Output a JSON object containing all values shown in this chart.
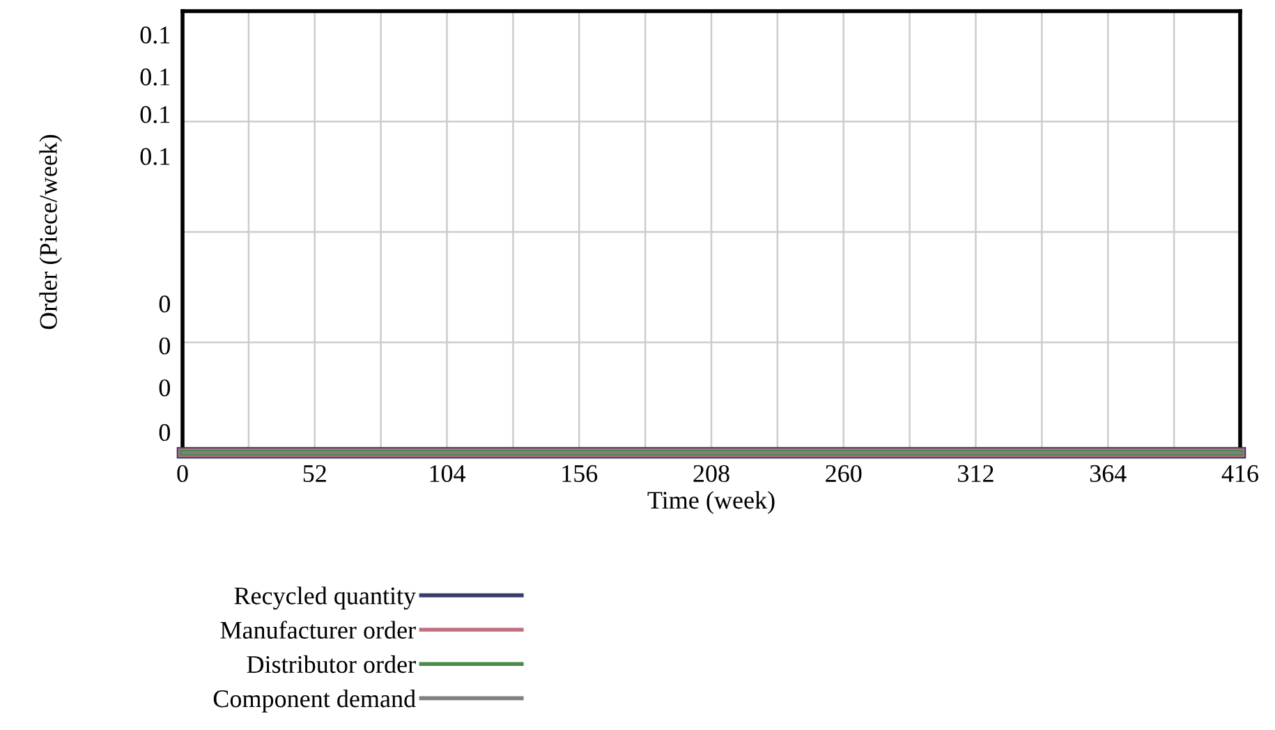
{
  "chart_data": {
    "type": "line",
    "xlabel": "Time (week)",
    "ylabel": "Order (Piece/week)",
    "x": [
      0,
      416
    ],
    "series": [
      {
        "name": "Recycled quantity",
        "color": "#3a3a6a",
        "values": [
          0,
          0
        ]
      },
      {
        "name": "Manufacturer order",
        "color": "#c07080",
        "values": [
          0,
          0
        ]
      },
      {
        "name": "Distributor order",
        "color": "#4a8a4a",
        "values": [
          0,
          0
        ]
      },
      {
        "name": "Component demand",
        "color": "#808080",
        "values": [
          0,
          0
        ]
      }
    ],
    "xlim": [
      0,
      416
    ],
    "xticks": [
      0,
      {
        "value": 26,
        "label": null
      },
      52,
      {
        "value": 78,
        "label": null
      },
      104,
      {
        "value": 130,
        "label": null
      },
      156,
      {
        "value": 182,
        "label": null
      },
      208,
      {
        "value": 234,
        "label": null
      },
      260,
      {
        "value": 286,
        "label": null
      },
      312,
      {
        "value": 338,
        "label": null
      },
      364,
      {
        "value": 390,
        "label": null
      },
      416
    ],
    "ylim": [
      0,
      0.1
    ],
    "yticks": [
      {
        "value": 0.0947,
        "label": "0.1"
      },
      {
        "value": 0.0852,
        "label": "0.1"
      },
      {
        "value": 0.0767,
        "label": "0.1"
      },
      {
        "value": 0.0672,
        "label": "0.1"
      },
      {
        "value": 0.0338,
        "label": "0"
      },
      {
        "value": 0.0243,
        "label": "0"
      },
      {
        "value": 0.0148,
        "label": "0"
      },
      {
        "value": 0.0047,
        "label": "0"
      },
      {
        "value": 0.025,
        "label": null
      },
      {
        "value": 0.05,
        "label": null
      },
      {
        "value": 0.075,
        "label": null
      }
    ],
    "grid": true,
    "legend": "bottom",
    "line_style": "solid"
  }
}
